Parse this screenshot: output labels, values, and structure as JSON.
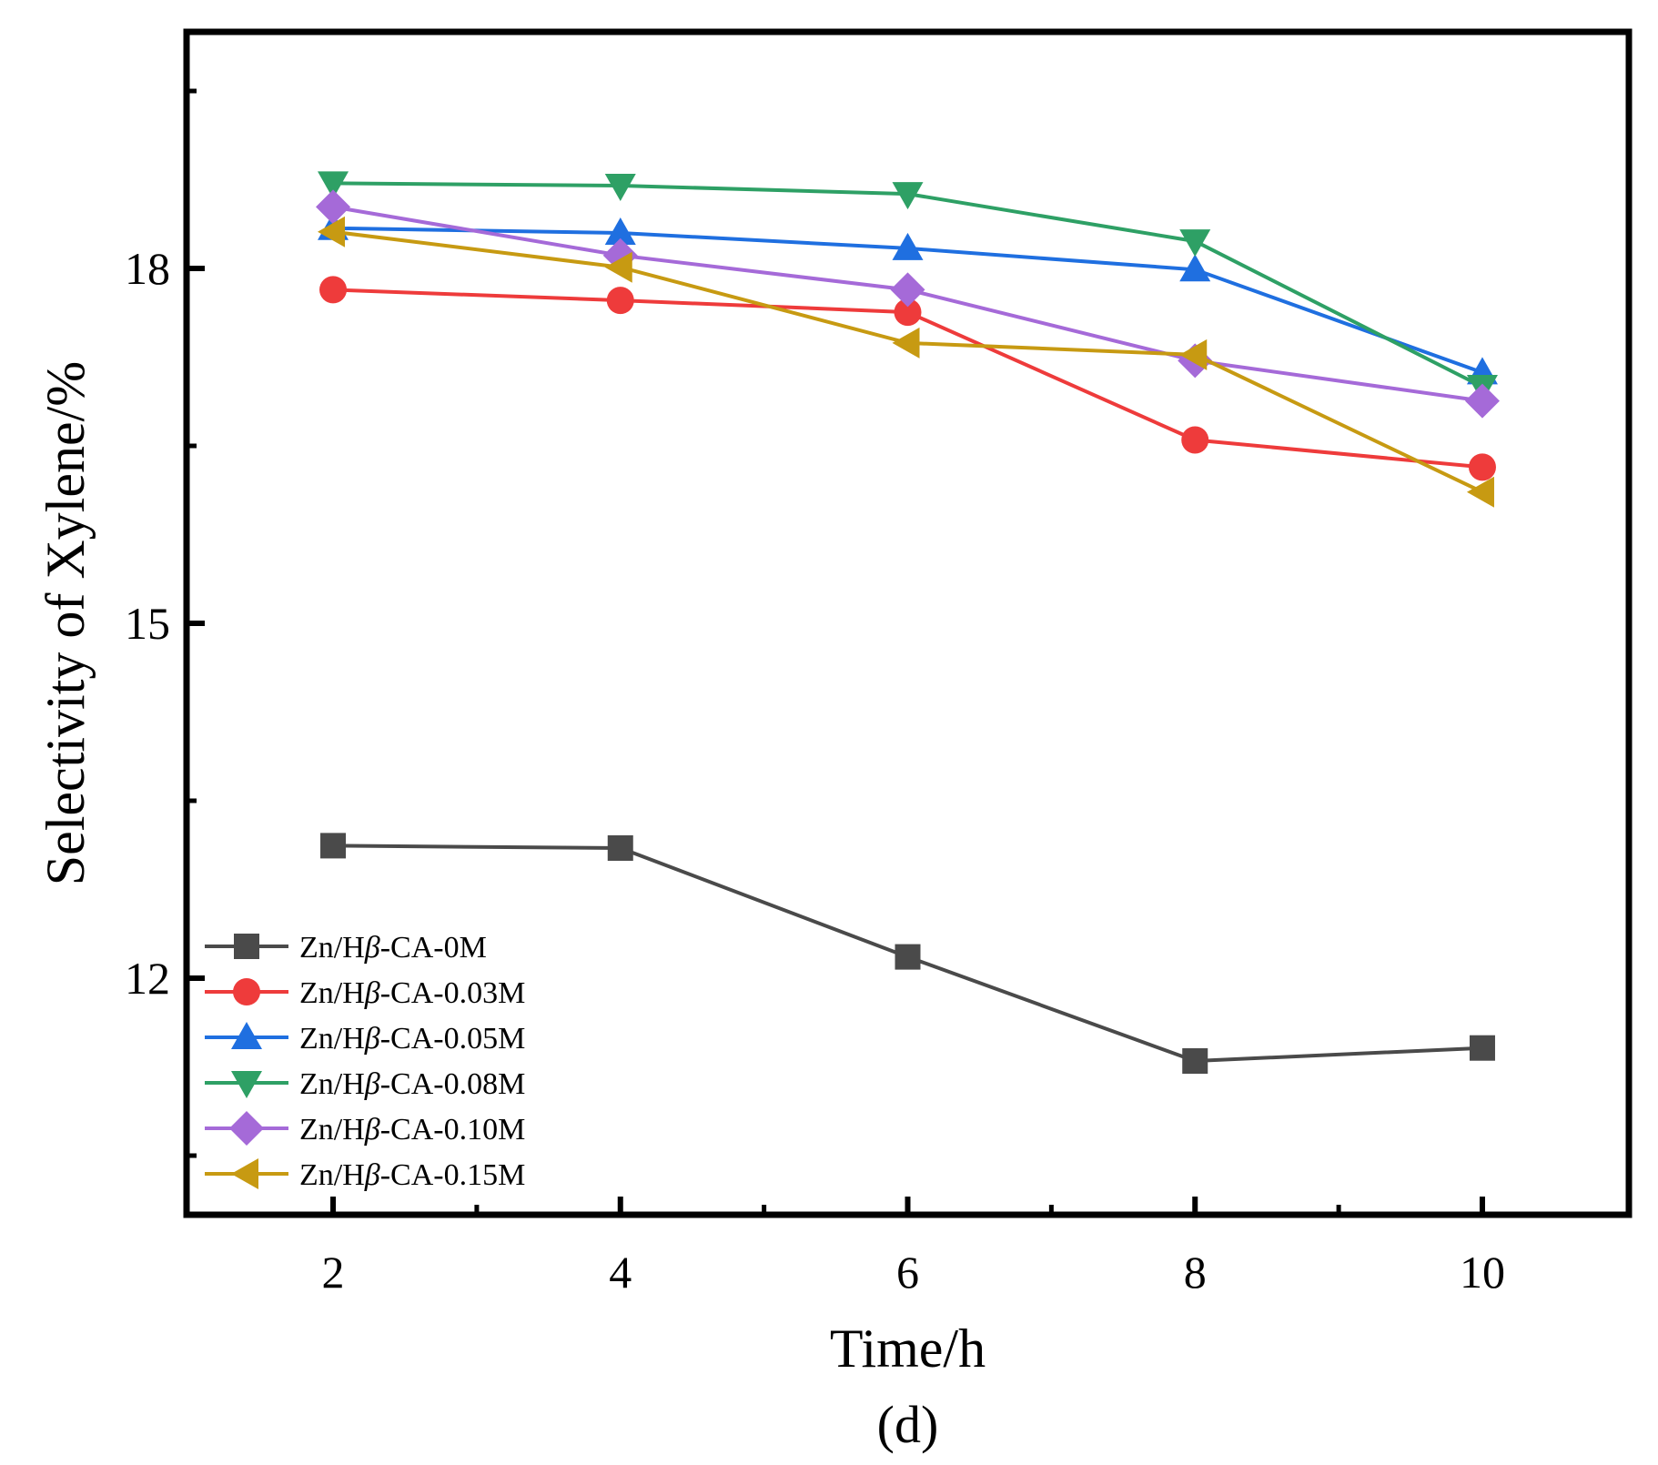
{
  "chart_data": {
    "type": "line",
    "xlabel": "Time/h",
    "ylabel": "Selectivity of Xylene/%",
    "caption": "(d)",
    "xlim": [
      0.98,
      11.02
    ],
    "ylim": [
      10.0,
      20.0
    ],
    "x_ticks": [
      2,
      4,
      6,
      8,
      10
    ],
    "x_tick_labels": [
      "2",
      "4",
      "6",
      "8",
      "10"
    ],
    "x_minor_ticks": [
      3,
      5,
      7,
      9
    ],
    "y_ticks": [
      12,
      15,
      18
    ],
    "y_tick_labels": [
      "12",
      "15",
      "18"
    ],
    "y_minor_ticks": [
      10.5,
      13.5,
      16.5,
      19.5
    ],
    "grid": false,
    "legend_position": "bottom-left",
    "legend_prefix": "Zn/H",
    "legend_greek": "β",
    "x": [
      2,
      4,
      6,
      8,
      10
    ],
    "series": [
      {
        "name": "Zn/Hβ-CA-0M",
        "suffix": "-CA-0M",
        "color": "#4a4a4a",
        "marker": "square",
        "values": [
          13.12,
          13.1,
          12.18,
          11.3,
          11.41
        ]
      },
      {
        "name": "Zn/Hβ-CA-0.03M",
        "suffix": "-CA-0.03M",
        "color": "#ee3b3b",
        "marker": "circle",
        "values": [
          17.82,
          17.73,
          17.63,
          16.55,
          16.32
        ]
      },
      {
        "name": "Zn/Hβ-CA-0.05M",
        "suffix": "-CA-0.05M",
        "color": "#1f6fe0",
        "marker": "triangle-up",
        "values": [
          18.34,
          18.3,
          18.17,
          17.99,
          17.12
        ]
      },
      {
        "name": "Zn/Hβ-CA-0.08M",
        "suffix": "-CA-0.08M",
        "color": "#2ea065",
        "marker": "triangle-down",
        "values": [
          18.72,
          18.7,
          18.63,
          18.23,
          17.0
        ]
      },
      {
        "name": "Zn/Hβ-CA-0.10M",
        "suffix": "-CA-0.10M",
        "color": "#a56ad8",
        "marker": "diamond",
        "values": [
          18.52,
          18.11,
          17.82,
          17.22,
          16.88
        ]
      },
      {
        "name": "Zn/Hβ-CA-0.15M",
        "suffix": "-CA-0.15M",
        "color": "#c79a12",
        "marker": "triangle-left",
        "values": [
          18.31,
          18.01,
          17.37,
          17.27,
          16.11
        ]
      }
    ]
  }
}
